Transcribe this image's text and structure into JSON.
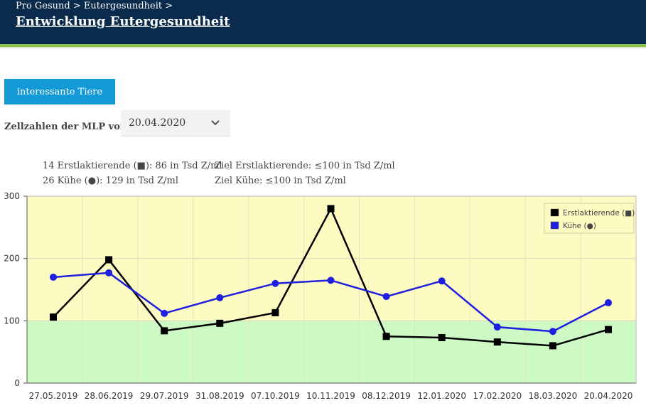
{
  "header": {
    "breadcrumb": "Pro Gesund > Eutergesundheit >",
    "title": "Entwicklung Eutergesundheit"
  },
  "toolbar": {
    "interesting_animals_label": "interessante Tiere"
  },
  "filter": {
    "label": "Zellzahlen der MLP vom",
    "selected_date": "20.04.2020"
  },
  "info": {
    "first_lact": "14 Erstlaktierende (■): 86 in Tsd Z/ml",
    "first_lact_target": "Ziel Erstlaktierende: ≤100 in Tsd Z/ml",
    "cows": "26 Kühe (●): 129 in Tsd Z/ml",
    "cows_target": "Ziel Kühe: ≤100 in Tsd Z/ml"
  },
  "colors": {
    "header_bg": "#0a2b4c",
    "accent_green": "#8bc44a",
    "button_blue": "#139ad6",
    "zone_yellow": "#fdfbc2",
    "zone_green": "#cdfac4",
    "series_first_lact": "#000000",
    "series_cows": "#1f1fe0"
  },
  "chart_data": {
    "type": "line",
    "categories": [
      "27.05.2019",
      "28.06.2019",
      "29.07.2019",
      "31.08.2019",
      "07.10.2019",
      "10.11.2019",
      "08.12.2019",
      "12.01.2020",
      "17.02.2020",
      "18.03.2020",
      "20.04.2020"
    ],
    "ylim": [
      0,
      300
    ],
    "yticks": [
      "0",
      "100",
      "200",
      "300"
    ],
    "threshold": 100,
    "grid": true,
    "legend_position": "top-right",
    "series": [
      {
        "name": "Erstlaktierende (■)",
        "marker": "square",
        "color": "#000000",
        "values": [
          106,
          198,
          84,
          96,
          113,
          280,
          75,
          73,
          66,
          60,
          86
        ]
      },
      {
        "name": "Kühe (●)",
        "marker": "circle",
        "color": "#1f1fe0",
        "values": [
          170,
          177,
          112,
          137,
          160,
          165,
          139,
          164,
          90,
          83,
          129
        ]
      }
    ]
  }
}
